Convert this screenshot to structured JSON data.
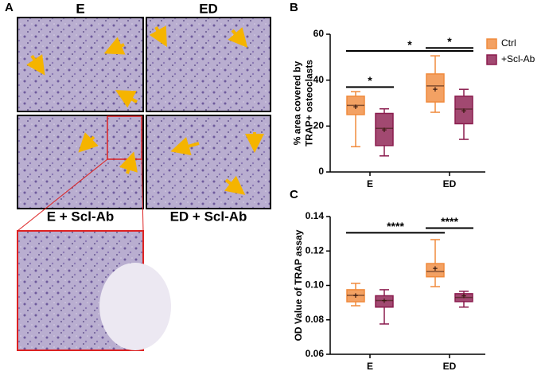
{
  "panel_a": {
    "label": "A",
    "images": [
      "E",
      "ED",
      "E + Scl-Ab",
      "ED + Scl-Ab"
    ]
  },
  "chart_data": [
    {
      "type": "box",
      "panel": "B",
      "ylabel": [
        "% area covered by",
        "TRAP+ osteoclasts"
      ],
      "categories": [
        "E",
        "ED"
      ],
      "ylim": [
        0,
        60
      ],
      "yticks": [
        0,
        20,
        40,
        60
      ],
      "series": [
        {
          "name": "Ctrl",
          "color": "#f08a3c",
          "values": [
            {
              "min": 11,
              "q1": 25,
              "median": 29,
              "q3": 33,
              "max": 35,
              "mean": 28
            },
            {
              "min": 26,
              "q1": 30.5,
              "median": 37.5,
              "q3": 42.7,
              "max": 50.6,
              "mean": 35.7
            }
          ]
        },
        {
          "name": "+Scl-Ab",
          "color": "#8b1c4e",
          "values": [
            {
              "min": 7,
              "q1": 11.5,
              "median": 19,
              "q3": 25.5,
              "max": 27.5,
              "mean": 18
            },
            {
              "min": 14.2,
              "q1": 21,
              "median": 27.4,
              "q3": 33,
              "max": 36,
              "mean": 26.4
            }
          ]
        }
      ],
      "annotations": [
        {
          "text": "*",
          "y": 37
        },
        {
          "text": "*",
          "y": 52.7
        },
        {
          "text": "*",
          "y": 54
        }
      ],
      "legend": "right"
    },
    {
      "type": "box",
      "panel": "C",
      "ylabel": [
        "OD Value of TRAP assay"
      ],
      "categories": [
        "E",
        "ED"
      ],
      "ylim": [
        0.06,
        0.14
      ],
      "yticks": [
        0.06,
        0.08,
        {
          "value": 0.1,
          "label": "0.10"
        },
        0.12,
        0.14
      ],
      "series": [
        {
          "name": "Ctrl",
          "color": "#f08a3c",
          "values": [
            {
              "min": 0.0882,
              "q1": 0.0905,
              "median": 0.0942,
              "q3": 0.0975,
              "max": 0.1012,
              "mean": 0.0937
            },
            {
              "min": 0.0993,
              "q1": 0.105,
              "median": 0.1081,
              "q3": 0.1127,
              "max": 0.1266,
              "mean": 0.1095
            }
          ]
        },
        {
          "name": "+Scl-Ab",
          "color": "#8b1c4e",
          "values": [
            {
              "min": 0.0776,
              "q1": 0.0874,
              "median": 0.0912,
              "q3": 0.094,
              "max": 0.0975,
              "mean": 0.0906
            },
            {
              "min": 0.0874,
              "q1": 0.0906,
              "median": 0.093,
              "q3": 0.0952,
              "max": 0.0966,
              "mean": 0.0935
            }
          ]
        }
      ],
      "annotations": [
        {
          "text": "****",
          "y": 0.1306
        },
        {
          "text": "****",
          "y": 0.1333
        }
      ]
    }
  ]
}
